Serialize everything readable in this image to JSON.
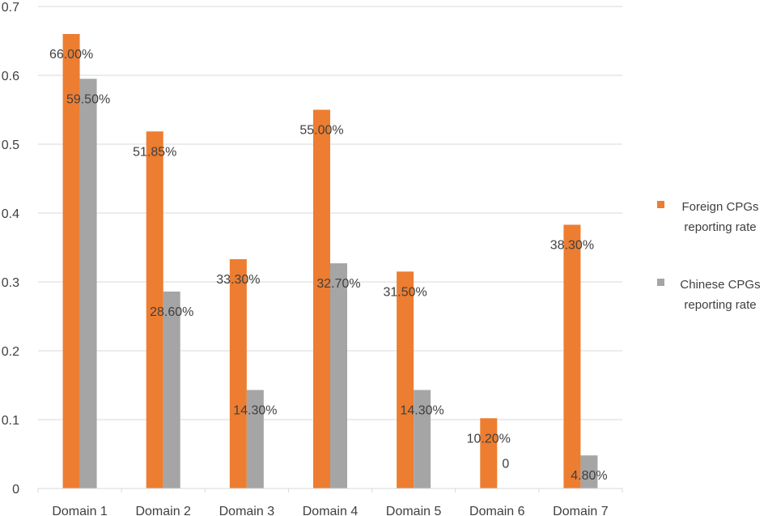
{
  "chart_data": {
    "type": "bar",
    "categories": [
      "Domain 1",
      "Domain 2",
      "Domain 3",
      "Domain 4",
      "Domain 5",
      "Domain 6",
      "Domain 7"
    ],
    "series": [
      {
        "name": "Foreign CPGs reporting rate",
        "legend_lines": [
          "Foreign CPGs",
          "reporting rate"
        ],
        "color": "#ED7D31",
        "values": [
          0.66,
          0.5185,
          0.333,
          0.55,
          0.315,
          0.102,
          0.383
        ],
        "labels": [
          "66.00%",
          "51.85%",
          "33.30%",
          "55.00%",
          "31.50%",
          "10.20%",
          "38.30%"
        ]
      },
      {
        "name": "Chinese CPGs reporting rate",
        "legend_lines": [
          "Chinese CPGs",
          "reporting rate"
        ],
        "color": "#A5A5A5",
        "values": [
          0.595,
          0.286,
          0.143,
          0.327,
          0.143,
          0,
          0.048
        ],
        "labels": [
          "59.50%",
          "28.60%",
          "14.30%",
          "32.70%",
          "14.30%",
          "0",
          "4.80%"
        ]
      }
    ],
    "ylim": [
      0,
      0.7
    ],
    "yticks": [
      "0",
      "0.1",
      "0.2",
      "0.3",
      "0.4",
      "0.5",
      "0.6",
      "0.7"
    ],
    "grid": true,
    "legend_position": "right"
  }
}
